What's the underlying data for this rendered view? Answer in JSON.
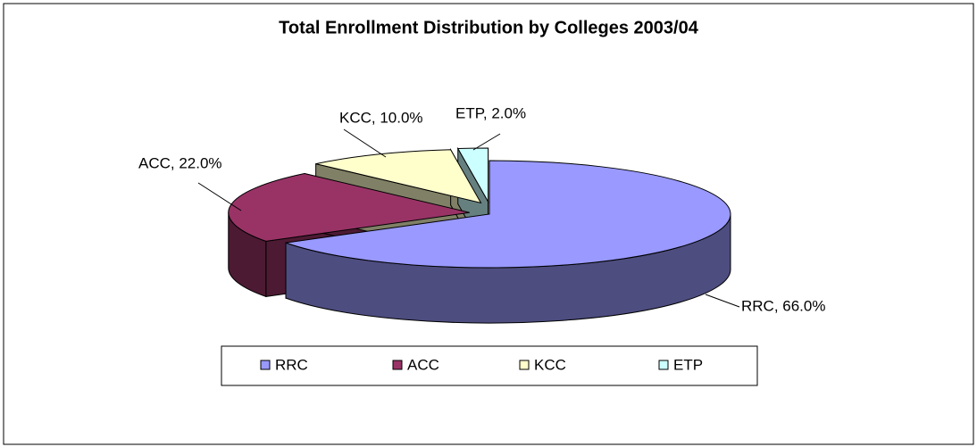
{
  "chart_data": {
    "type": "pie3d",
    "title": "Total Enrollment Distribution by Colleges 2003/04",
    "categories": [
      "RRC",
      "ACC",
      "KCC",
      "ETP"
    ],
    "values": [
      66,
      22,
      10,
      2
    ],
    "value_labels": [
      "RRC, 66.0%",
      "ACC, 22.0%",
      "KCC, 10.0%",
      "ETP, 2.0%"
    ],
    "colors": [
      "#9999ff",
      "#993366",
      "#ffffcc",
      "#ccffff"
    ],
    "legend": "bottom"
  }
}
